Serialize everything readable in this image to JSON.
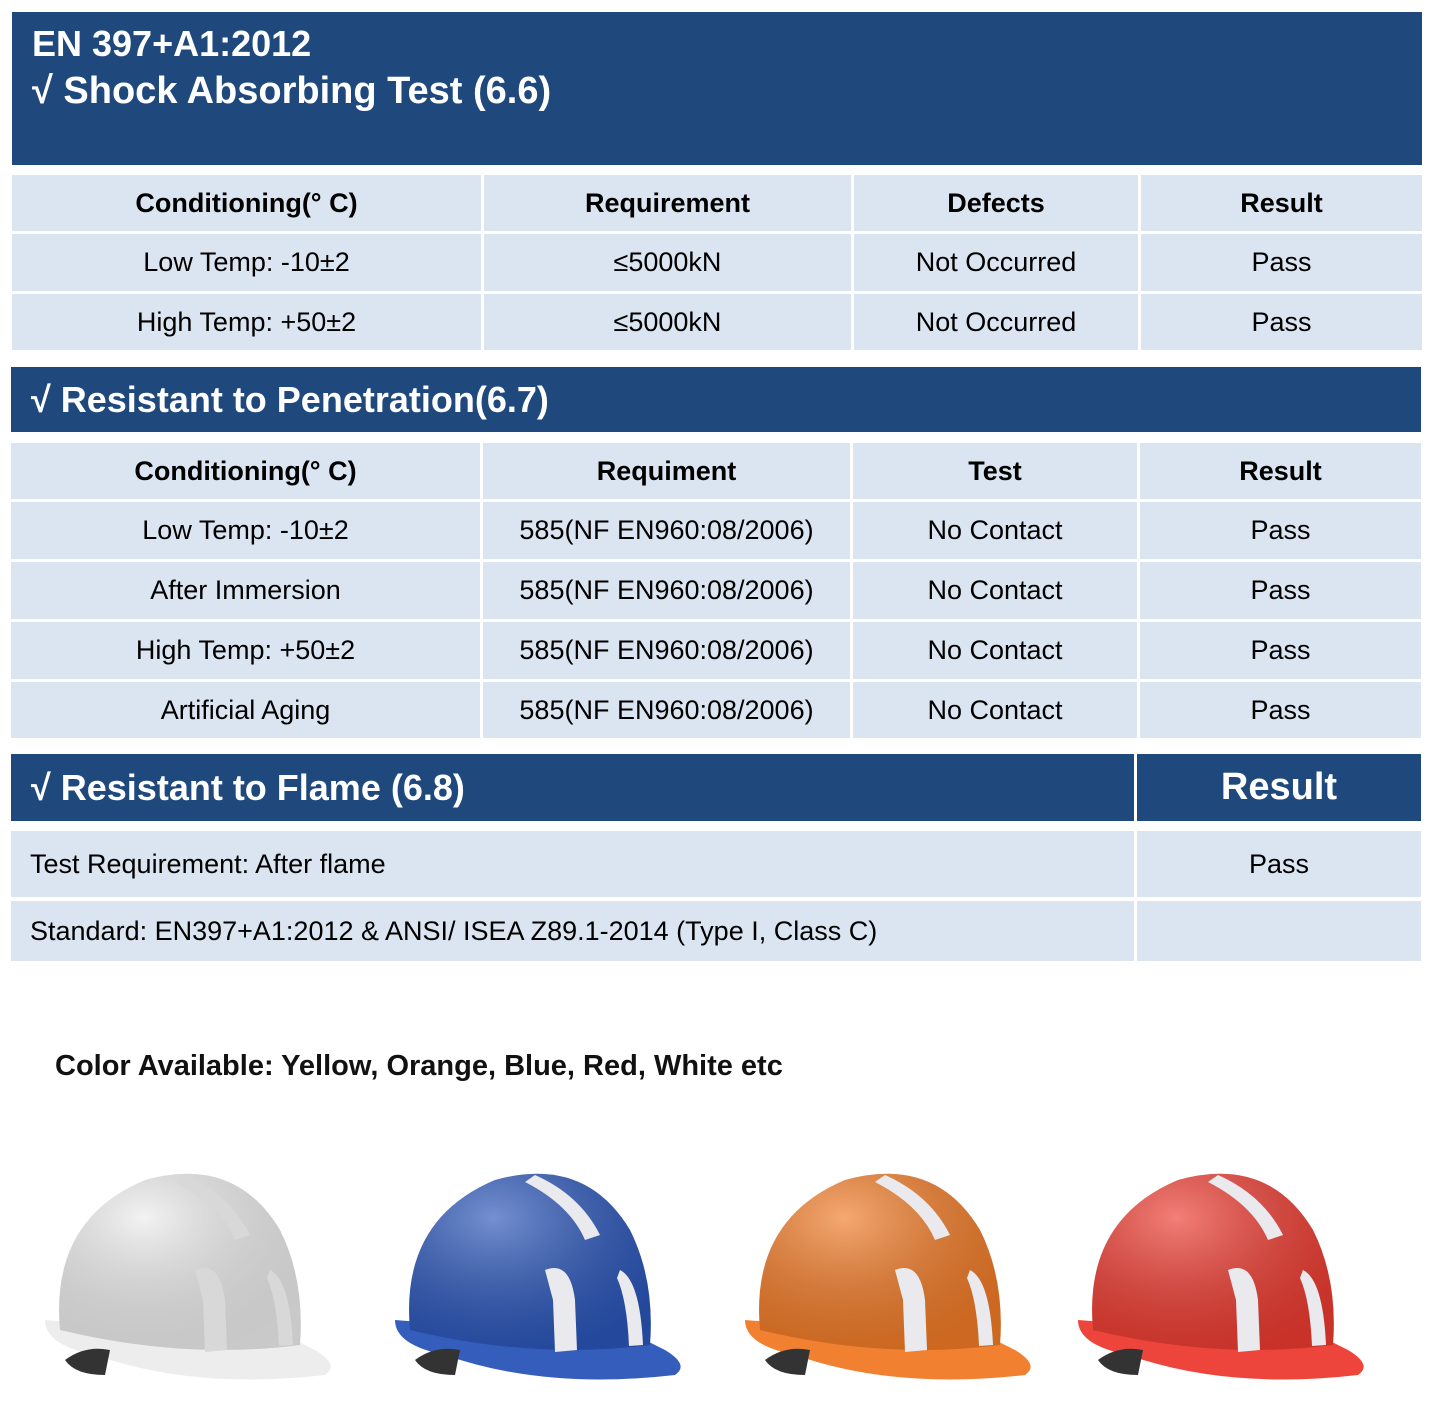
{
  "header": {
    "standard": "EN 397+A1:2012",
    "title": "√  Shock Absorbing Test (6.6)"
  },
  "shock_table": {
    "columns": [
      "Conditioning(° C)",
      "Requirement",
      "Defects",
      "Result"
    ],
    "rows": [
      [
        "Low Temp: -10±2",
        "≤5000kN",
        "Not Occurred",
        "Pass"
      ],
      [
        "High Temp: +50±2",
        "≤5000kN",
        "Not Occurred",
        "Pass"
      ]
    ]
  },
  "penetration": {
    "title": "√  Resistant to Penetration(6.7)",
    "columns": [
      "Conditioning(° C)",
      "Requiment",
      "Test",
      "Result"
    ],
    "rows": [
      [
        "Low Temp: -10±2",
        "585(NF EN960:08/2006)",
        "No Contact",
        "Pass"
      ],
      [
        "After Immersion",
        "585(NF EN960:08/2006)",
        "No Contact",
        "Pass"
      ],
      [
        "High Temp: +50±2",
        "585(NF EN960:08/2006)",
        "No Contact",
        "Pass"
      ],
      [
        "Artificial Aging",
        "585(NF EN960:08/2006)",
        "No Contact",
        "Pass"
      ]
    ]
  },
  "flame": {
    "title": "√  Resistant to Flame (6.8)",
    "result_header": "Result",
    "rows": [
      {
        "label": "Test Requirement: After flame",
        "result": "Pass"
      },
      {
        "label": "Standard: EN397+A1:2012  & ANSI/ ISEA Z89.1-2014 (Type I, Class C)",
        "result": ""
      }
    ]
  },
  "colors_text": "Color Available: Yellow, Orange, Blue, Red, White etc",
  "helmets": [
    {
      "name": "white",
      "color": "#ececec"
    },
    {
      "name": "blue",
      "color": "#2a55b8"
    },
    {
      "name": "orange",
      "color": "#f07a26"
    },
    {
      "name": "red",
      "color": "#ec3b30"
    }
  ],
  "theme": {
    "dark": "#1f497d",
    "light": "#dbe5f1"
  }
}
